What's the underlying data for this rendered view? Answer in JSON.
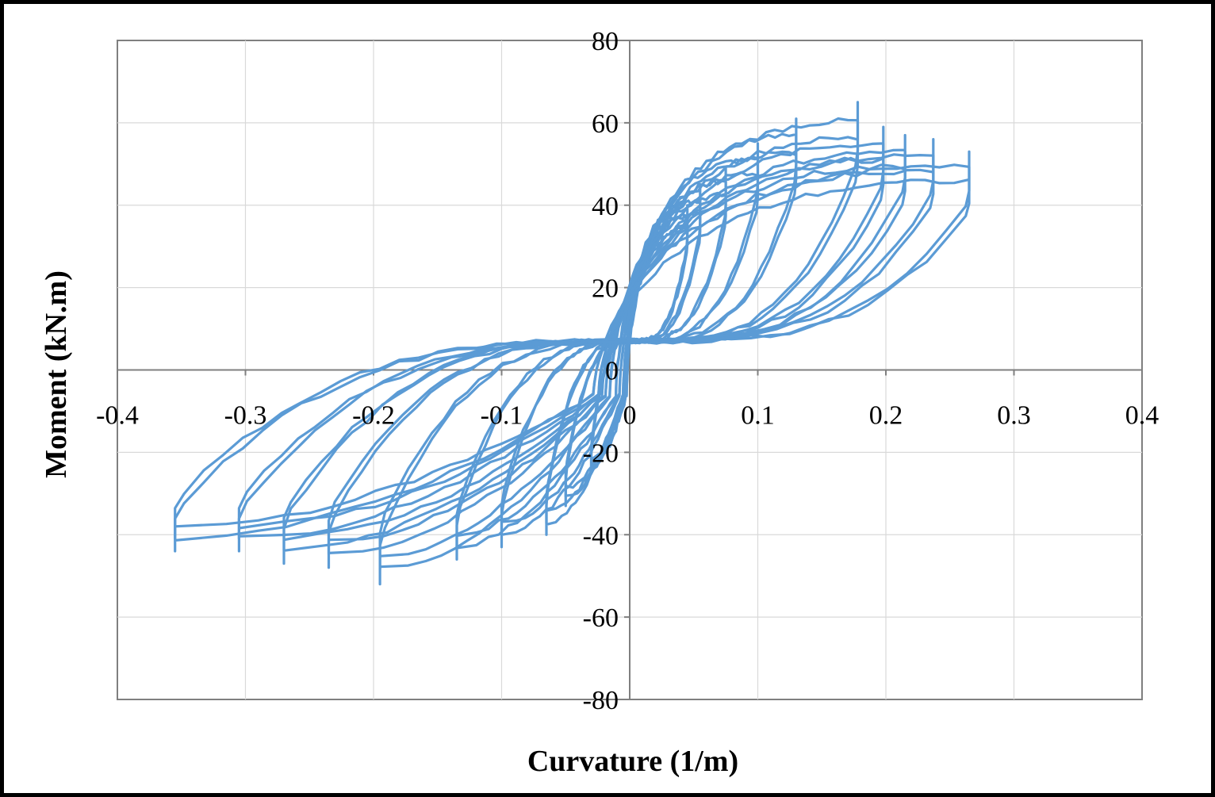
{
  "chart_data": {
    "type": "line",
    "title": "",
    "xlabel": "Curvature (1/m)",
    "ylabel": "Moment (kN.m)",
    "xlim": [
      -0.4,
      0.4
    ],
    "ylim": [
      -80,
      80
    ],
    "x_ticks": [
      -0.4,
      -0.3,
      -0.2,
      -0.1,
      0,
      0.1,
      0.2,
      0.3,
      0.4
    ],
    "x_tick_labels": [
      "-0.4",
      "-0.3",
      "-0.2",
      "-0.1",
      "0",
      "0.1",
      "0.2",
      "0.3",
      "0.4"
    ],
    "y_ticks": [
      -80,
      -60,
      -40,
      -20,
      0,
      20,
      40,
      60,
      80
    ],
    "y_tick_labels": [
      "-80",
      "-60",
      "-40",
      "-20",
      "0",
      "20",
      "40",
      "60",
      "80"
    ],
    "grid": true,
    "legend": "none",
    "colors": {
      "series": "#5B9BD5",
      "grid": "#D9D9D9",
      "axis": "#7F7F7F",
      "border": "#000000"
    },
    "series": [
      {
        "description": "cyclic moment-curvature hysteresis loops (peak points per cycle)",
        "loops": [
          {
            "pos_peak": [
              0.045,
              40
            ],
            "neg_peak": [
              -0.03,
              -25
            ]
          },
          {
            "pos_peak": [
              0.055,
              44
            ],
            "neg_peak": [
              -0.05,
              -33
            ]
          },
          {
            "pos_peak": [
              0.075,
              49
            ],
            "neg_peak": [
              -0.065,
              -40
            ]
          },
          {
            "pos_peak": [
              0.1,
              55
            ],
            "neg_peak": [
              -0.1,
              -43
            ]
          },
          {
            "pos_peak": [
              0.13,
              61
            ],
            "neg_peak": [
              -0.135,
              -46
            ]
          },
          {
            "pos_peak": [
              0.178,
              65
            ],
            "neg_peak": [
              -0.195,
              -52
            ]
          },
          {
            "pos_peak": [
              0.198,
              59
            ],
            "neg_peak": [
              -0.235,
              -48
            ]
          },
          {
            "pos_peak": [
              0.215,
              57
            ],
            "neg_peak": [
              -0.27,
              -47
            ]
          },
          {
            "pos_peak": [
              0.237,
              56
            ],
            "neg_peak": [
              -0.305,
              -44
            ]
          },
          {
            "pos_peak": [
              0.265,
              53
            ],
            "neg_peak": [
              -0.355,
              -44
            ]
          }
        ]
      }
    ]
  }
}
